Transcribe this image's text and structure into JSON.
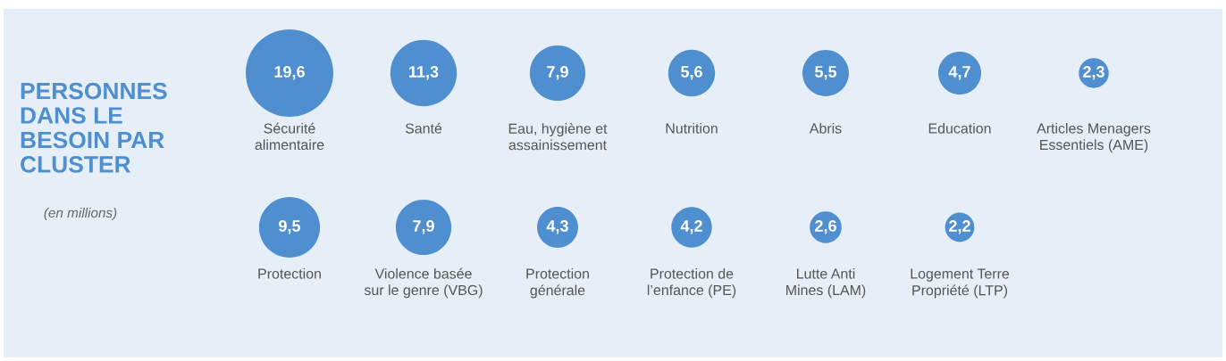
{
  "chart_data": {
    "type": "other",
    "title": "PERSONNES\nDANS LE\nBESOIN PAR\nCLUSTER",
    "subtitle": "(en millions)",
    "categories": [
      "Sécurité\nalimentaire",
      "Santé",
      "Eau, hygiène et\nassainissement",
      "Nutrition",
      "Abris",
      "Education",
      "Articles Menagers\nEssentiels (AME)",
      "Protection",
      "Violence basée\nsur le genre (VBG)",
      "Protection\ngénérale",
      "Protection de\nl’enfance (PE)",
      "Lutte Anti\nMines (LAM)",
      "Logement Terre\nPropriété (LTP)"
    ],
    "values": [
      19.6,
      11.3,
      7.9,
      5.6,
      5.5,
      4.7,
      2.3,
      9.5,
      7.9,
      4.3,
      4.2,
      2.6,
      2.2
    ],
    "value_labels": [
      "19,6",
      "11,3",
      "7,9",
      "5,6",
      "5,5",
      "4,7",
      "2,3",
      "9,5",
      "7,9",
      "4,3",
      "4,2",
      "2,6",
      "2,2"
    ],
    "color": "#4f8fcf"
  }
}
